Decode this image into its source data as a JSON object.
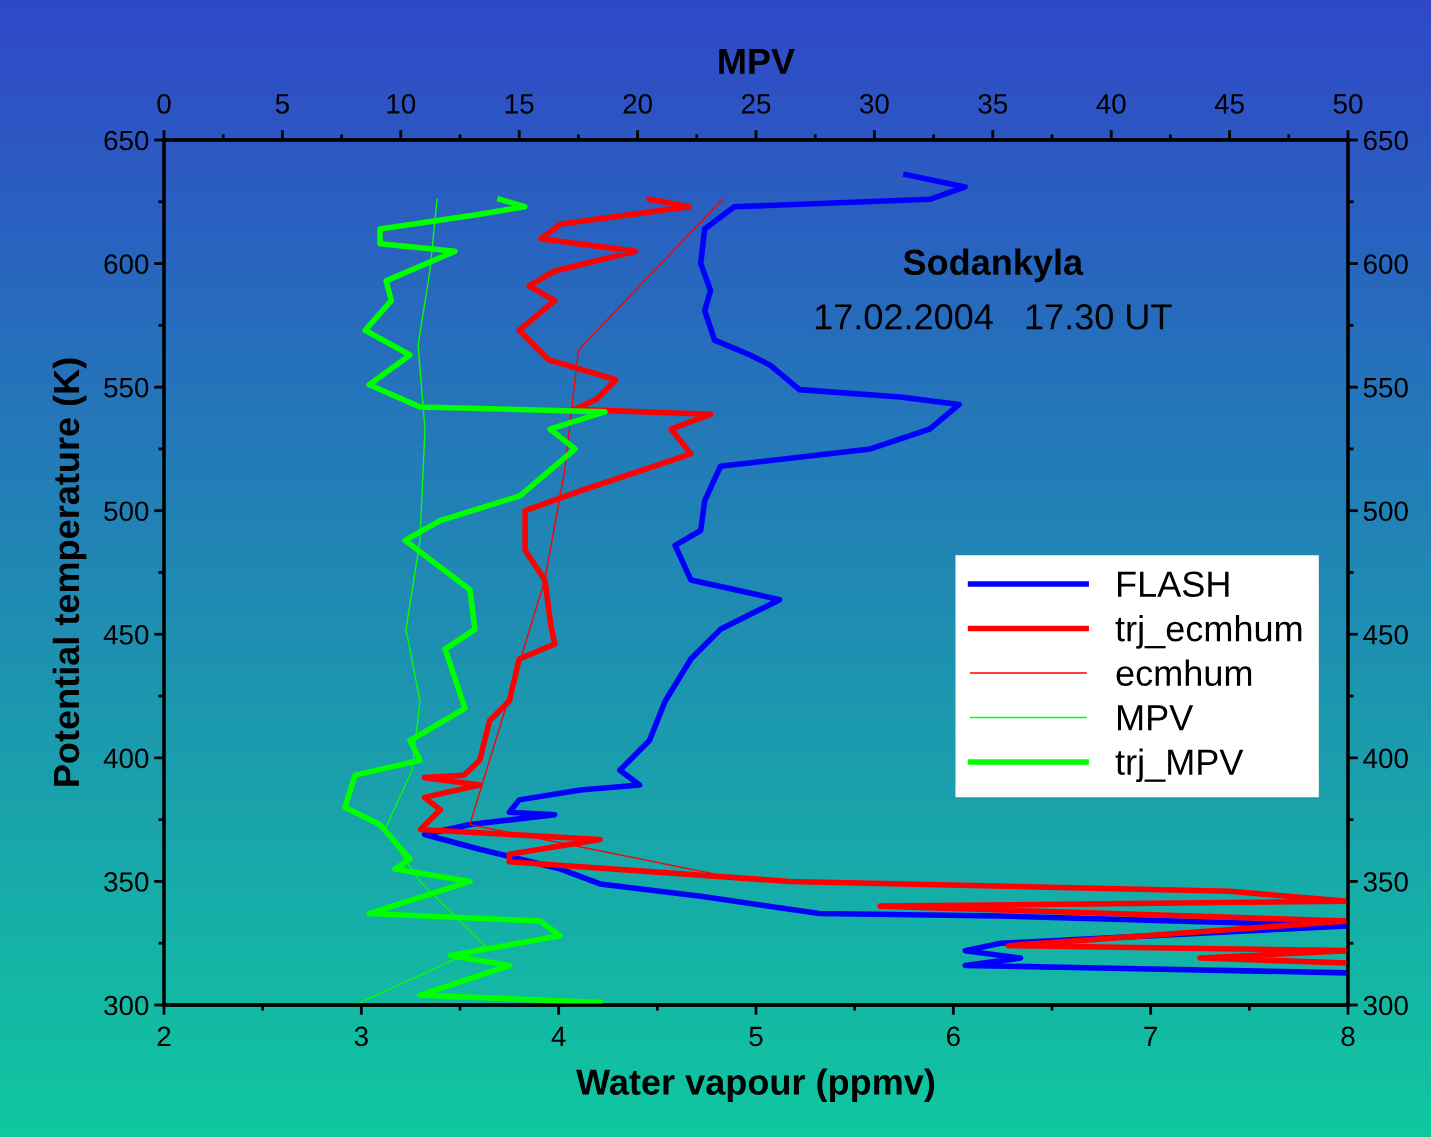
{
  "chart_data": {
    "type": "line",
    "xlabel": "Water vapour (ppmv)",
    "ylabel": "Potential temperature (K)",
    "x2label": "MPV",
    "xlim": [
      2,
      8
    ],
    "xticks": [
      2,
      3,
      4,
      5,
      6,
      7,
      8
    ],
    "x2lim": [
      0,
      50
    ],
    "x2ticks": [
      0,
      5,
      10,
      15,
      20,
      25,
      30,
      35,
      40,
      45,
      50
    ],
    "ylim": [
      300,
      650
    ],
    "yticks": [
      300,
      350,
      400,
      450,
      500,
      550,
      600,
      650
    ],
    "y2lim": [
      300,
      650
    ],
    "y2ticks": [
      300,
      350,
      400,
      450,
      500,
      550,
      600,
      650
    ],
    "annotations": [
      "Sodankyla",
      "17.02.2004   17.30 UT"
    ],
    "legend": "right",
    "grid": false,
    "marker": "none",
    "line_style": "solid",
    "series": [
      {
        "name": "FLASH",
        "color": "#0000ff",
        "x": [
          5.76,
          6.06,
          5.88,
          4.89,
          4.74,
          4.72,
          4.77,
          4.74,
          4.79,
          4.97,
          5.07,
          5.22,
          5.73,
          6.03,
          5.88,
          5.58,
          4.82,
          4.74,
          4.72,
          4.59,
          4.67,
          5.12,
          5.02,
          4.82,
          4.67,
          4.54,
          4.46,
          4.31,
          4.41,
          4.11,
          3.8,
          3.75,
          3.98,
          3.55,
          3.32,
          3.6,
          4.01,
          4.21,
          4.72,
          5.32,
          6.24,
          8,
          6.24,
          6.06,
          6.34,
          6.06,
          6.74,
          8
        ],
        "values": [
          636,
          631,
          626,
          623,
          614,
          600,
          589,
          581,
          569,
          563,
          559,
          549,
          546,
          543,
          533,
          525,
          518,
          504,
          492,
          486,
          472,
          464,
          460,
          452,
          440,
          423,
          407,
          395,
          389,
          387,
          383,
          378,
          377,
          373,
          369,
          363,
          355,
          349,
          344,
          337,
          336,
          332,
          325,
          322,
          319,
          316,
          315,
          313
        ]
      },
      {
        "name": "trj_ecmhum",
        "color": "#ff0000",
        "x": [
          4.46,
          4.66,
          4.01,
          3.91,
          4.39,
          3.98,
          3.85,
          3.98,
          3.8,
          3.95,
          4.29,
          4.19,
          4.08,
          4.77,
          4.57,
          4.67,
          4.41,
          4.11,
          3.83,
          3.83,
          3.93,
          3.96,
          3.98,
          3.8,
          3.75,
          3.65,
          3.6,
          3.52,
          3.32,
          3.6,
          3.32,
          3.4,
          3.3,
          4.21,
          3.75,
          3.75,
          5.17,
          7.4,
          8,
          5.63,
          8,
          6.28,
          8,
          7.25,
          8
        ],
        "values": [
          626,
          623,
          616,
          610,
          605,
          597,
          591,
          585,
          573,
          561,
          553,
          545,
          541,
          539,
          533,
          523,
          516,
          508,
          500,
          484,
          472,
          454,
          446,
          440,
          423,
          415,
          399,
          393,
          392,
          389,
          384,
          379,
          371,
          367,
          361,
          358,
          350,
          346,
          342,
          340,
          334,
          324,
          322,
          319,
          317
        ]
      },
      {
        "name": "ecmhum",
        "color": "#ff0000",
        "x": [
          4.83,
          4.1,
          4.03,
          3.93,
          3.55,
          4.79
        ],
        "values": [
          626,
          565,
          516,
          472,
          373,
          353
        ]
      },
      {
        "name": "MPV",
        "color": "#00ff00",
        "axis": "x2",
        "x": [
          11.53,
          11.23,
          10.73,
          11.02,
          10.81,
          10.22,
          10.81,
          10.47,
          9.33,
          10.81,
          13.56,
          8.28
        ],
        "values": [
          626,
          597,
          567,
          533,
          488,
          452,
          423,
          395,
          371,
          350,
          324,
          301
        ]
      },
      {
        "name": "trj_MPV",
        "color": "#00ff00",
        "axis": "x2",
        "x": [
          14.19,
          15.24,
          13.34,
          9.12,
          9.12,
          12.29,
          9.38,
          9.6,
          8.49,
          10.39,
          8.66,
          10.81,
          18.62,
          16.3,
          17.36,
          15.03,
          11.66,
          10.18,
          12.92,
          13.13,
          11.87,
          12.71,
          10.39,
          10.81,
          8.07,
          7.64,
          9.12,
          10.39,
          9.75,
          12.92,
          8.66,
          15.88,
          16.72,
          12.08,
          14.61,
          10.81,
          18.41
        ],
        "values": [
          626,
          623,
          620,
          614,
          608,
          605,
          593,
          585,
          573,
          563,
          551,
          542,
          540,
          533,
          525,
          506,
          496,
          488,
          468,
          452,
          444,
          420,
          407,
          399,
          393,
          380,
          373,
          359,
          355,
          350,
          337,
          334,
          328,
          320,
          316,
          304,
          301
        ]
      }
    ]
  }
}
